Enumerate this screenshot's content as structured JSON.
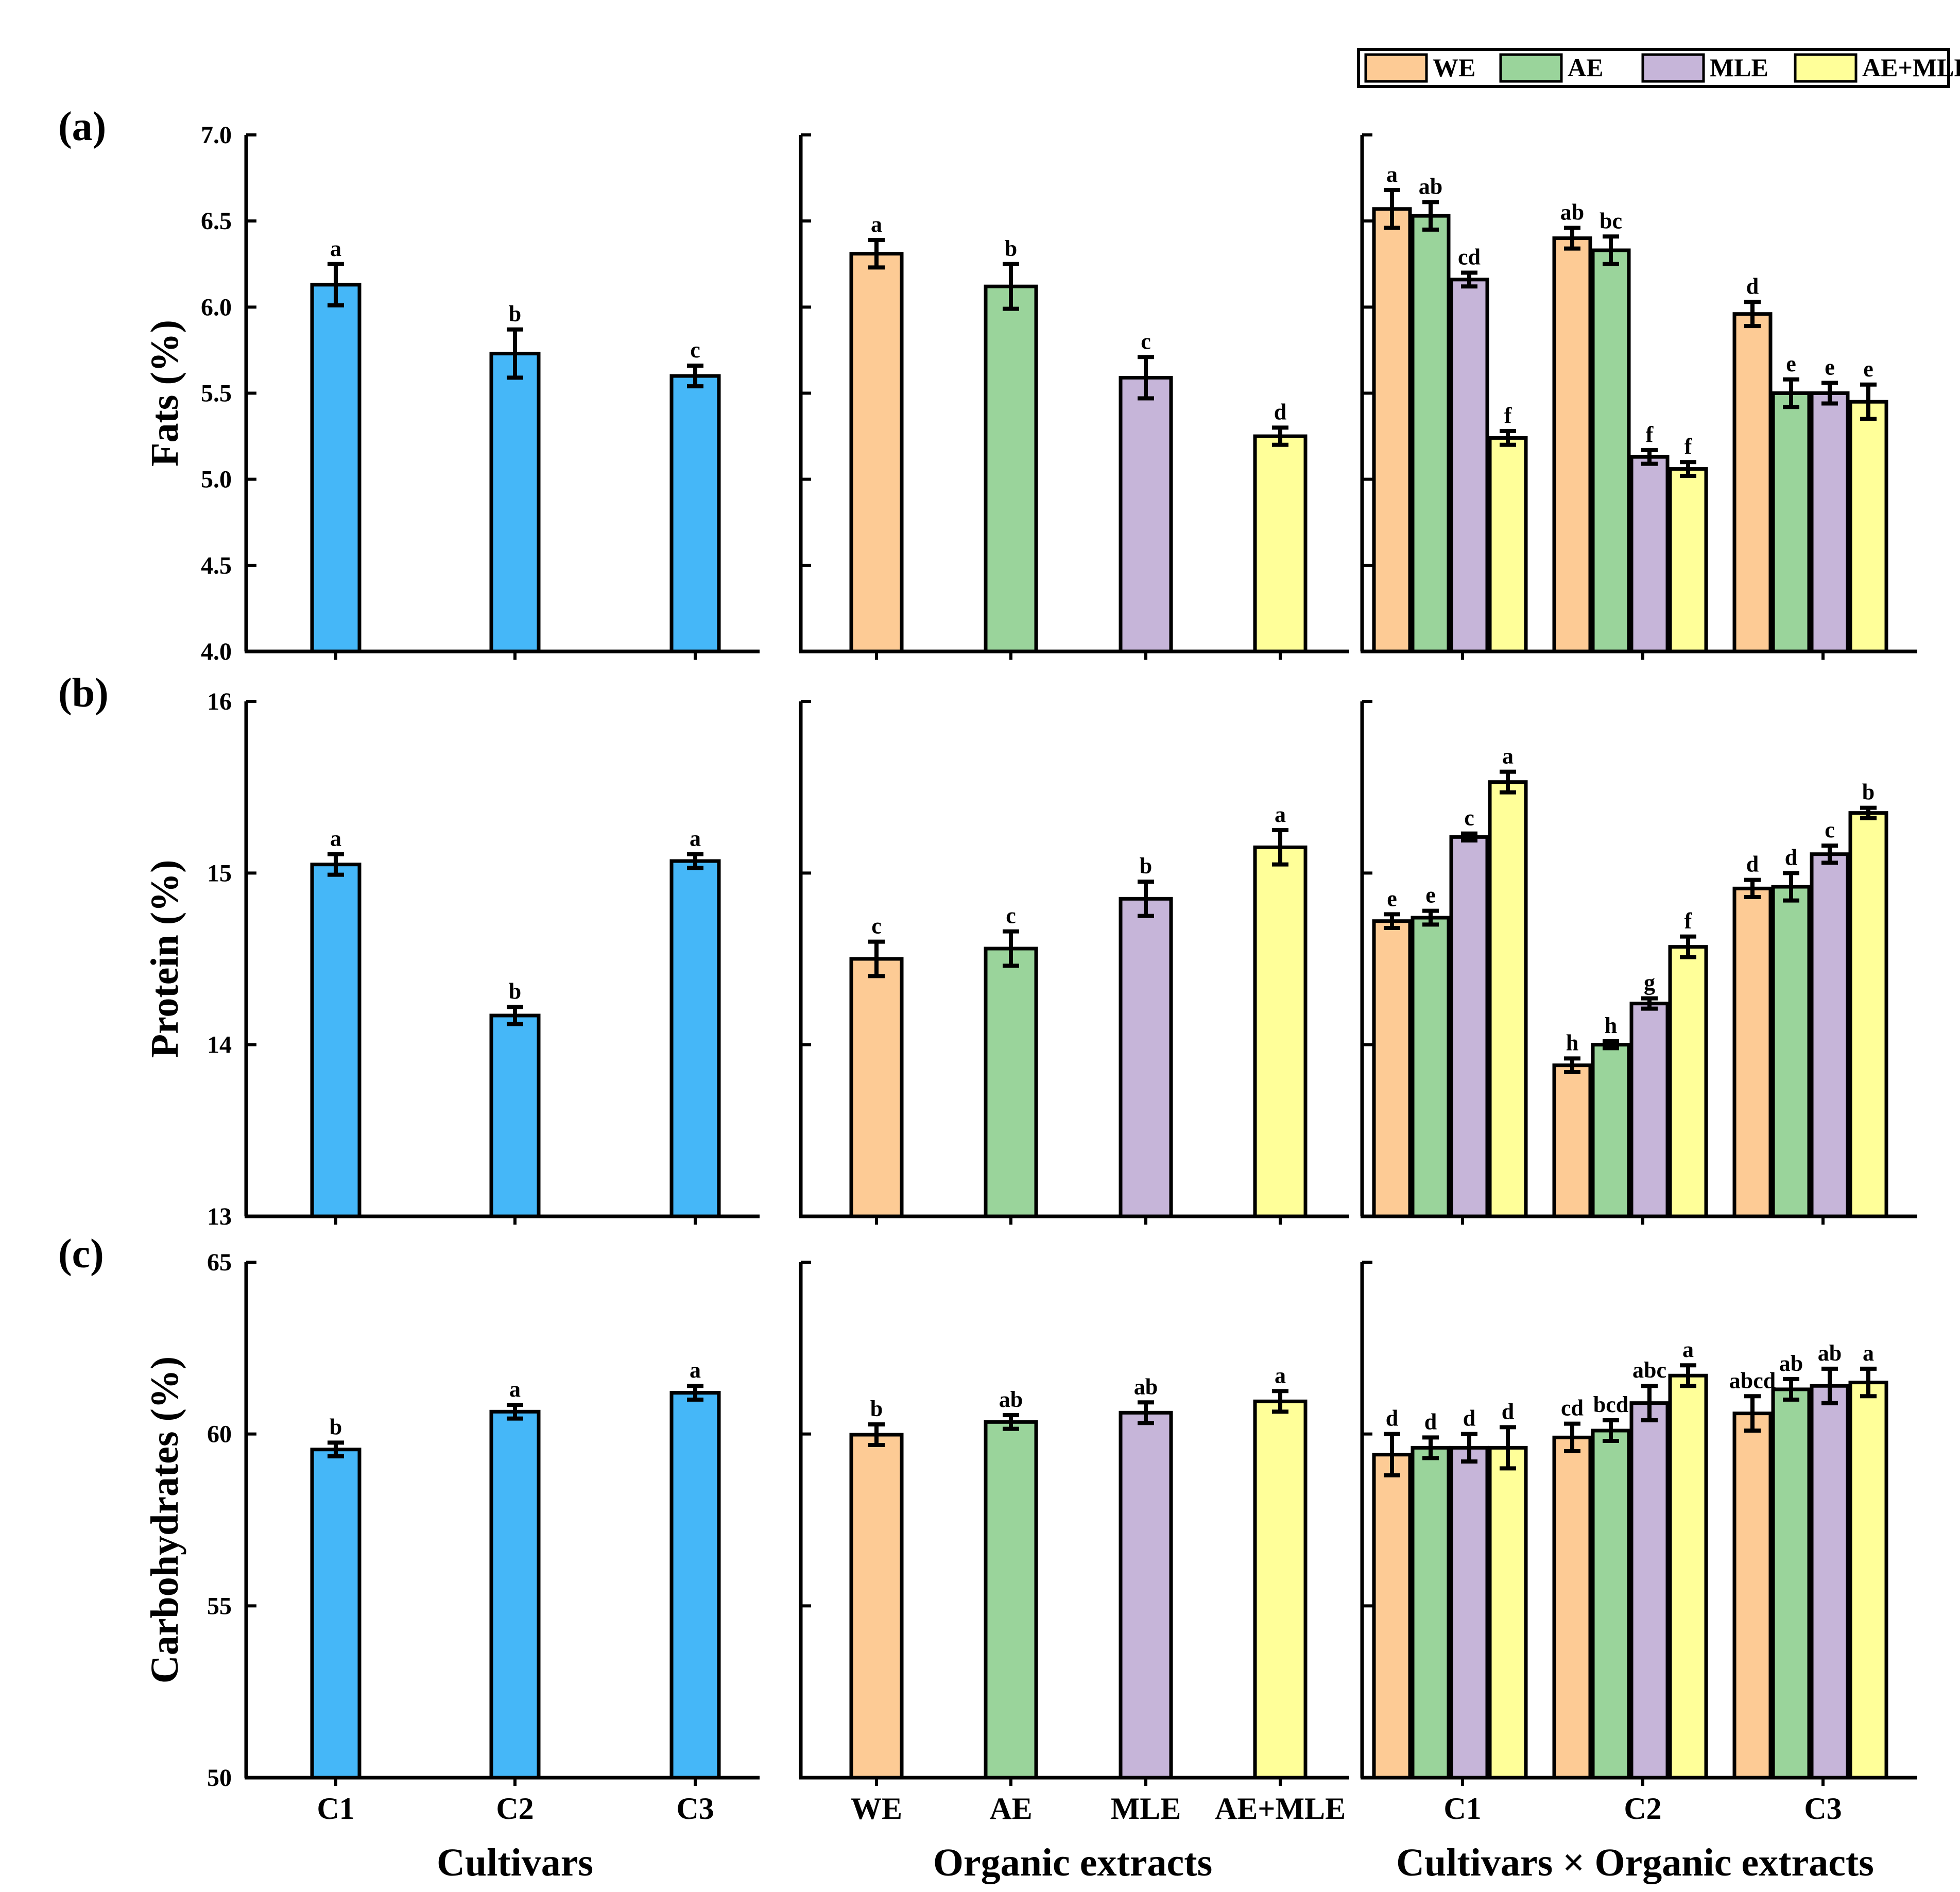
{
  "colors": {
    "cultivar": "#45B7F8",
    "WE": "#FDCB95",
    "AE": "#9AD49B",
    "MLE": "#C6B5D9",
    "AE+MLE": "#FFFF99",
    "axis": "#000000"
  },
  "legend": {
    "items": [
      "WE",
      "AE",
      "MLE",
      "AE+MLE"
    ],
    "position": "top-right"
  },
  "x_titles": [
    "Cultivars",
    "Organic extracts",
    "Cultivars × Organic extracts"
  ],
  "chart_data": [
    {
      "panel": "(a)",
      "type": "bar",
      "ylabel": "Fats (%)",
      "ylim": [
        4.0,
        7.0
      ],
      "yticks": [
        "4.0",
        "4.5",
        "5.0",
        "5.5",
        "6.0",
        "6.5",
        "7.0"
      ],
      "cultivars": {
        "categories": [
          "C1",
          "C2",
          "C3"
        ],
        "values": [
          6.13,
          5.73,
          5.6
        ],
        "errors": [
          0.12,
          0.14,
          0.06
        ],
        "letters": [
          "a",
          "b",
          "c"
        ]
      },
      "extracts": {
        "categories": [
          "WE",
          "AE",
          "MLE",
          "AE+MLE"
        ],
        "values": [
          6.31,
          6.12,
          5.59,
          5.25
        ],
        "errors": [
          0.08,
          0.13,
          0.12,
          0.05
        ],
        "letters": [
          "a",
          "b",
          "c",
          "d"
        ]
      },
      "interaction": {
        "categories": [
          "C1",
          "C2",
          "C3"
        ],
        "series": [
          {
            "name": "WE",
            "values": [
              6.57,
              6.4,
              5.96
            ],
            "errors": [
              0.11,
              0.06,
              0.07
            ],
            "letters": [
              "a",
              "ab",
              "d"
            ]
          },
          {
            "name": "AE",
            "values": [
              6.53,
              6.33,
              5.5
            ],
            "errors": [
              0.08,
              0.08,
              0.08
            ],
            "letters": [
              "ab",
              "bc",
              "e"
            ]
          },
          {
            "name": "MLE",
            "values": [
              6.16,
              5.13,
              5.5
            ],
            "errors": [
              0.04,
              0.04,
              0.06
            ],
            "letters": [
              "cd",
              "f",
              "e"
            ]
          },
          {
            "name": "AE+MLE",
            "values": [
              5.24,
              5.06,
              5.45
            ],
            "errors": [
              0.04,
              0.04,
              0.1
            ],
            "letters": [
              "f",
              "f",
              "e"
            ]
          }
        ]
      }
    },
    {
      "panel": "(b)",
      "type": "bar",
      "ylabel": "Protein (%)",
      "ylim": [
        13,
        16
      ],
      "yticks": [
        "13",
        "14",
        "15",
        "16"
      ],
      "cultivars": {
        "categories": [
          "C1",
          "C2",
          "C3"
        ],
        "values": [
          15.05,
          14.17,
          15.07
        ],
        "errors": [
          0.06,
          0.05,
          0.04
        ],
        "letters": [
          "a",
          "b",
          "a"
        ]
      },
      "extracts": {
        "categories": [
          "WE",
          "AE",
          "MLE",
          "AE+MLE"
        ],
        "values": [
          14.5,
          14.56,
          14.85,
          15.15
        ],
        "errors": [
          0.1,
          0.1,
          0.1,
          0.1
        ],
        "letters": [
          "c",
          "c",
          "b",
          "a"
        ]
      },
      "interaction": {
        "categories": [
          "C1",
          "C2",
          "C3"
        ],
        "series": [
          {
            "name": "WE",
            "values": [
              14.72,
              13.88,
              14.91
            ],
            "errors": [
              0.04,
              0.04,
              0.05
            ],
            "letters": [
              "e",
              "h",
              "d"
            ]
          },
          {
            "name": "AE",
            "values": [
              14.74,
              14.0,
              14.92
            ],
            "errors": [
              0.04,
              0.02,
              0.08
            ],
            "letters": [
              "e",
              "h",
              "d"
            ]
          },
          {
            "name": "MLE",
            "values": [
              15.21,
              14.24,
              15.11
            ],
            "errors": [
              0.02,
              0.03,
              0.05
            ],
            "letters": [
              "c",
              "g",
              "c"
            ]
          },
          {
            "name": "AE+MLE",
            "values": [
              15.53,
              14.57,
              15.35
            ],
            "errors": [
              0.06,
              0.06,
              0.03
            ],
            "letters": [
              "a",
              "f",
              "b"
            ]
          }
        ]
      }
    },
    {
      "panel": "(c)",
      "type": "bar",
      "ylabel": "Carbohydrates (%)",
      "ylim": [
        50,
        65
      ],
      "yticks": [
        "50",
        "55",
        "60",
        "65"
      ],
      "cultivars": {
        "categories": [
          "C1",
          "C2",
          "C3"
        ],
        "values": [
          59.55,
          60.65,
          61.2
        ],
        "errors": [
          0.2,
          0.2,
          0.2
        ],
        "letters": [
          "b",
          "a",
          "a"
        ]
      },
      "extracts": {
        "categories": [
          "WE",
          "AE",
          "MLE",
          "AE+MLE"
        ],
        "values": [
          59.98,
          60.35,
          60.62,
          60.95
        ],
        "errors": [
          0.3,
          0.2,
          0.3,
          0.3
        ],
        "letters": [
          "b",
          "ab",
          "ab",
          "a"
        ]
      },
      "interaction": {
        "categories": [
          "C1",
          "C2",
          "C3"
        ],
        "series": [
          {
            "name": "WE",
            "values": [
              59.4,
              59.9,
              60.6
            ],
            "errors": [
              0.6,
              0.4,
              0.5
            ],
            "letters": [
              "d",
              "cd",
              "abcd"
            ]
          },
          {
            "name": "AE",
            "values": [
              59.6,
              60.1,
              61.3
            ],
            "errors": [
              0.3,
              0.3,
              0.3
            ],
            "letters": [
              "d",
              "bcd",
              "ab"
            ]
          },
          {
            "name": "MLE",
            "values": [
              59.6,
              60.9,
              61.4
            ],
            "errors": [
              0.4,
              0.5,
              0.5
            ],
            "letters": [
              "d",
              "abc",
              "ab"
            ]
          },
          {
            "name": "AE+MLE",
            "values": [
              59.6,
              61.7,
              61.5
            ],
            "errors": [
              0.6,
              0.3,
              0.4
            ],
            "letters": [
              "d",
              "a",
              "a"
            ]
          }
        ]
      }
    }
  ]
}
